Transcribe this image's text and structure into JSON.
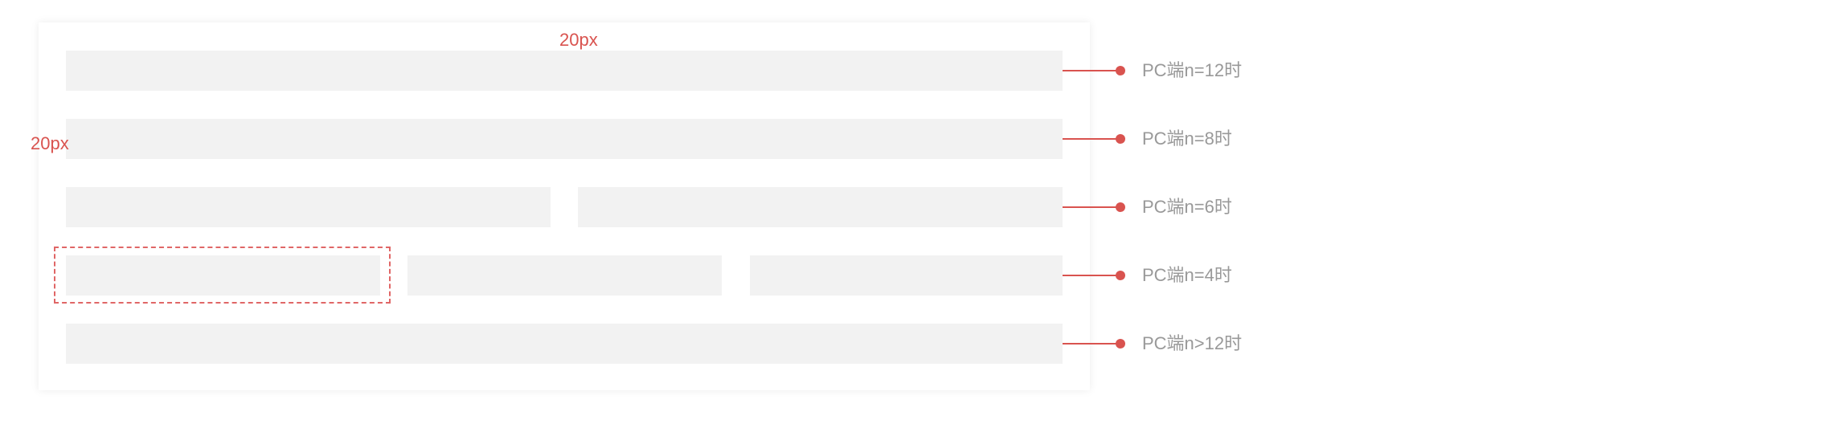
{
  "colors": {
    "annotation": "#d9534f",
    "bar_fill": "#f2f2f2",
    "label_text": "#999999"
  },
  "annotations": {
    "top_spacing": "20px",
    "side_spacing": "20px"
  },
  "rows": [
    {
      "label": "PC端n=12时",
      "columns": 1
    },
    {
      "label": "PC端n=8时",
      "columns": 1
    },
    {
      "label": "PC端n=6时",
      "columns": 2
    },
    {
      "label": "PC端n=4时",
      "columns": 3
    },
    {
      "label": "PC端n>12时",
      "columns": 1
    }
  ]
}
